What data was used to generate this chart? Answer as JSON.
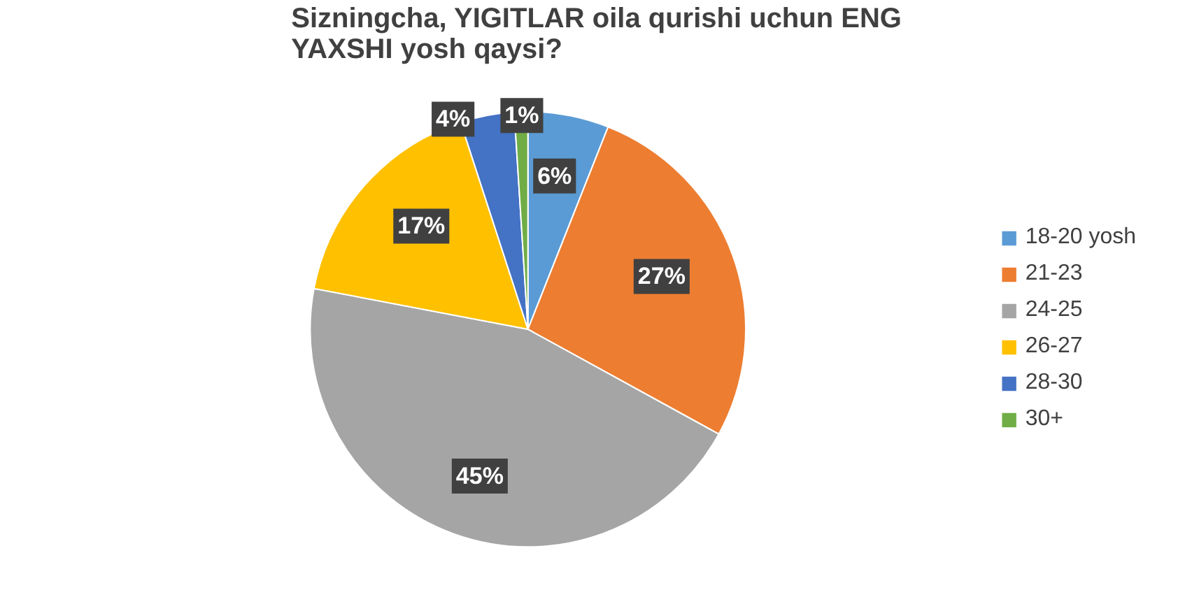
{
  "chart_data": {
    "type": "pie",
    "title": "Sizningcha, YIGITLAR oila qurishi uchun ENG YAXSHI yosh qaysi?",
    "categories": [
      "18-20 yosh",
      "21-23",
      "24-25",
      "26-27",
      "28-30",
      "30+"
    ],
    "values": [
      6,
      27,
      45,
      17,
      4,
      1
    ],
    "colors": [
      "#5b9bd5",
      "#ed7d31",
      "#a5a5a5",
      "#ffc000",
      "#4472c4",
      "#70ad47"
    ],
    "value_labels": [
      "6%",
      "27%",
      "45%",
      "17%",
      "4%",
      "1%"
    ],
    "legend": "right"
  }
}
